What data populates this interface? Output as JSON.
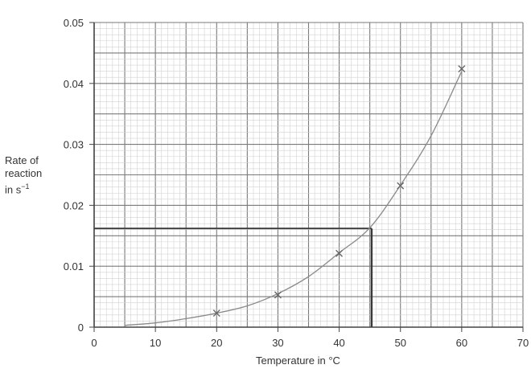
{
  "chart_data": {
    "type": "line",
    "title": "",
    "xlabel": "Temperature in °C",
    "ylabel_lines": [
      "Rate of",
      "reaction",
      "in s",
      "−1"
    ],
    "xlim": [
      0,
      70
    ],
    "ylim": [
      0,
      0.05
    ],
    "x_ticks": [
      "0",
      "10",
      "20",
      "30",
      "40",
      "50",
      "60",
      "70"
    ],
    "y_ticks": [
      "0",
      "0.01",
      "0.02",
      "0.03",
      "0.04",
      "0.05"
    ],
    "grid": true,
    "series": [
      {
        "points": [
          {
            "x": 20,
            "y": 0.0023
          },
          {
            "x": 30,
            "y": 0.0053
          },
          {
            "x": 40,
            "y": 0.0121
          },
          {
            "x": 50,
            "y": 0.0232
          },
          {
            "x": 60,
            "y": 0.0424
          }
        ]
      }
    ],
    "curve": {
      "x": [
        5,
        10,
        15,
        20,
        25,
        30,
        35,
        40,
        45,
        50,
        55,
        60
      ],
      "y": [
        0.0003,
        0.0007,
        0.0014,
        0.0023,
        0.0035,
        0.0055,
        0.0083,
        0.0122,
        0.0163,
        0.0233,
        0.0314,
        0.042
      ]
    },
    "readoff": {
      "x": 45.3,
      "y": 0.0162
    },
    "colors": {
      "grid_minor": "#d2d2d2",
      "grid_major": "#7a7a7a",
      "axis": "#444444",
      "curve": "#8a8a8a",
      "marker": "#666666",
      "readoff": "#3a3a3a"
    }
  }
}
